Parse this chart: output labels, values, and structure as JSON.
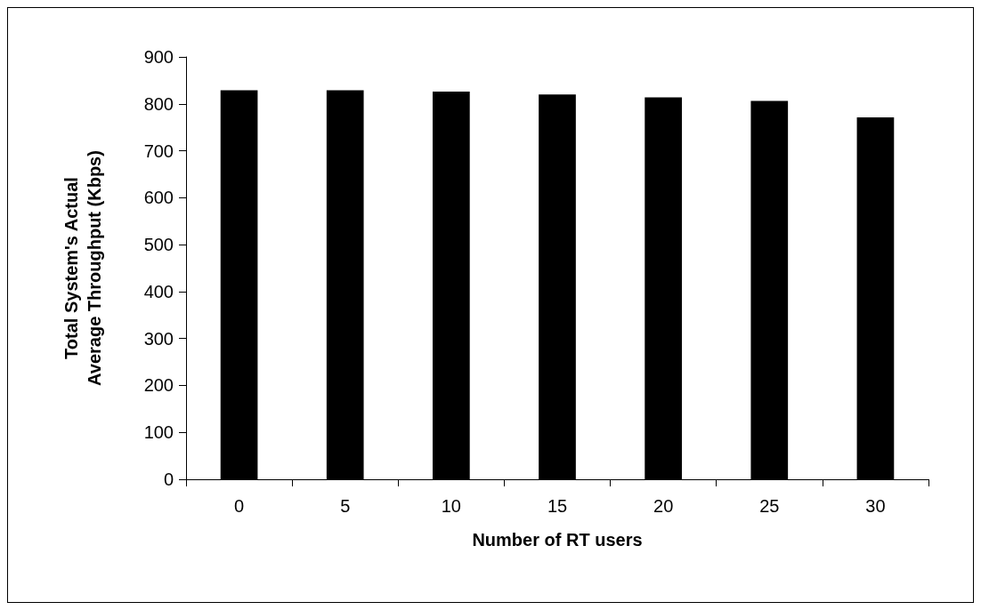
{
  "chart_data": {
    "type": "bar",
    "xlabel": "Number of RT users",
    "ylabel": "Total System's Actual Average Throughput (Kbps)",
    "categories": [
      "0",
      "5",
      "10",
      "15",
      "20",
      "25",
      "30"
    ],
    "values": [
      829,
      829,
      826,
      820,
      814,
      806,
      771
    ],
    "color": "#000000",
    "ylim": [
      0,
      900
    ],
    "yticks": [
      0,
      100,
      200,
      300,
      400,
      500,
      600,
      700,
      800,
      900
    ],
    "grid": false
  }
}
